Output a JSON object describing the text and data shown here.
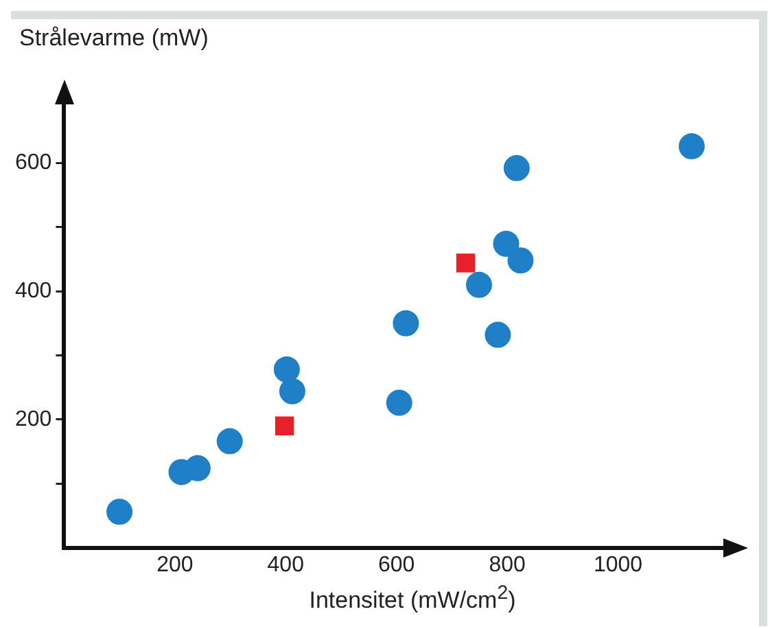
{
  "chart_data": {
    "type": "scatter",
    "ylabel": "Strålevarme (mW)",
    "xlabel": "Intensitet (mW/cm$^{2}$)",
    "xlim": [
      0,
      1200
    ],
    "xticks": [
      200,
      400,
      600,
      800,
      1000
    ],
    "ylim": [
      0,
      700
    ],
    "yticks": [
      {
        "value": 100,
        "label": null
      },
      200,
      {
        "value": 300,
        "label": null
      },
      400,
      {
        "value": 500,
        "label": null
      },
      600
    ],
    "grid": false,
    "legend": false,
    "series": [
      {
        "color": "#1f7fc7",
        "marker": "circle",
        "x": [
          100,
          212,
          241,
          299,
          402,
          412,
          605,
          617,
          749,
          783,
          798,
          817,
          824,
          1133
        ],
        "values": [
          56,
          118,
          124,
          166,
          278,
          244,
          226,
          350,
          410,
          332,
          474,
          592,
          448,
          626
        ]
      },
      {
        "color": "#e8202a",
        "marker": "square",
        "x": [
          398,
          725
        ],
        "values": [
          190,
          444
        ]
      }
    ]
  }
}
